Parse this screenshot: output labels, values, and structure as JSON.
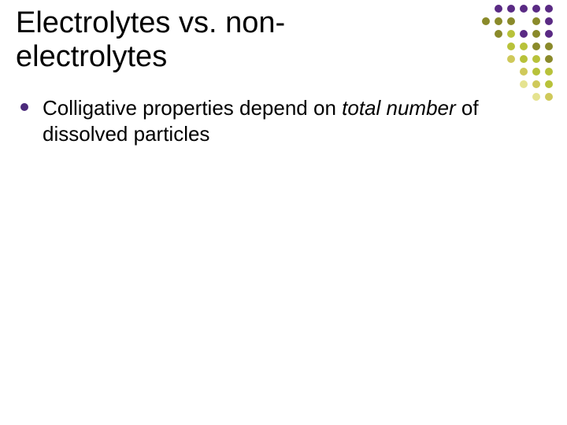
{
  "slide": {
    "title": "Electrolytes vs. non-electrolytes",
    "title_fontsize": 38,
    "title_color": "#000000",
    "background_color": "#ffffff",
    "bullets": [
      {
        "pre": "Colligative properties depend on ",
        "italic": "total number",
        "post": " of dissolved particles"
      }
    ],
    "bullet_fontsize": 26,
    "bullet_color": "#000000",
    "bullet_marker_color": "#4b2a7b"
  },
  "decor": {
    "palette": {
      "purple": "#5a2a84",
      "olive": "#8a8a2a",
      "lime": "#b8c23a",
      "khaki": "#cfc95a",
      "paleyl": "#e5e390",
      "empty": "transparent"
    },
    "grid": [
      [
        "empty",
        "empty",
        "purple",
        "purple",
        "purple",
        "purple",
        "purple"
      ],
      [
        "empty",
        "olive",
        "olive",
        "olive",
        "empty",
        "olive",
        "purple"
      ],
      [
        "empty",
        "empty",
        "olive",
        "lime",
        "purple",
        "olive",
        "purple"
      ],
      [
        "empty",
        "empty",
        "empty",
        "lime",
        "lime",
        "olive",
        "olive"
      ],
      [
        "empty",
        "empty",
        "empty",
        "khaki",
        "lime",
        "lime",
        "olive"
      ],
      [
        "empty",
        "empty",
        "empty",
        "empty",
        "khaki",
        "lime",
        "lime"
      ],
      [
        "empty",
        "empty",
        "empty",
        "empty",
        "paleyl",
        "khaki",
        "lime"
      ],
      [
        "empty",
        "empty",
        "empty",
        "empty",
        "empty",
        "paleyl",
        "khaki"
      ]
    ]
  }
}
